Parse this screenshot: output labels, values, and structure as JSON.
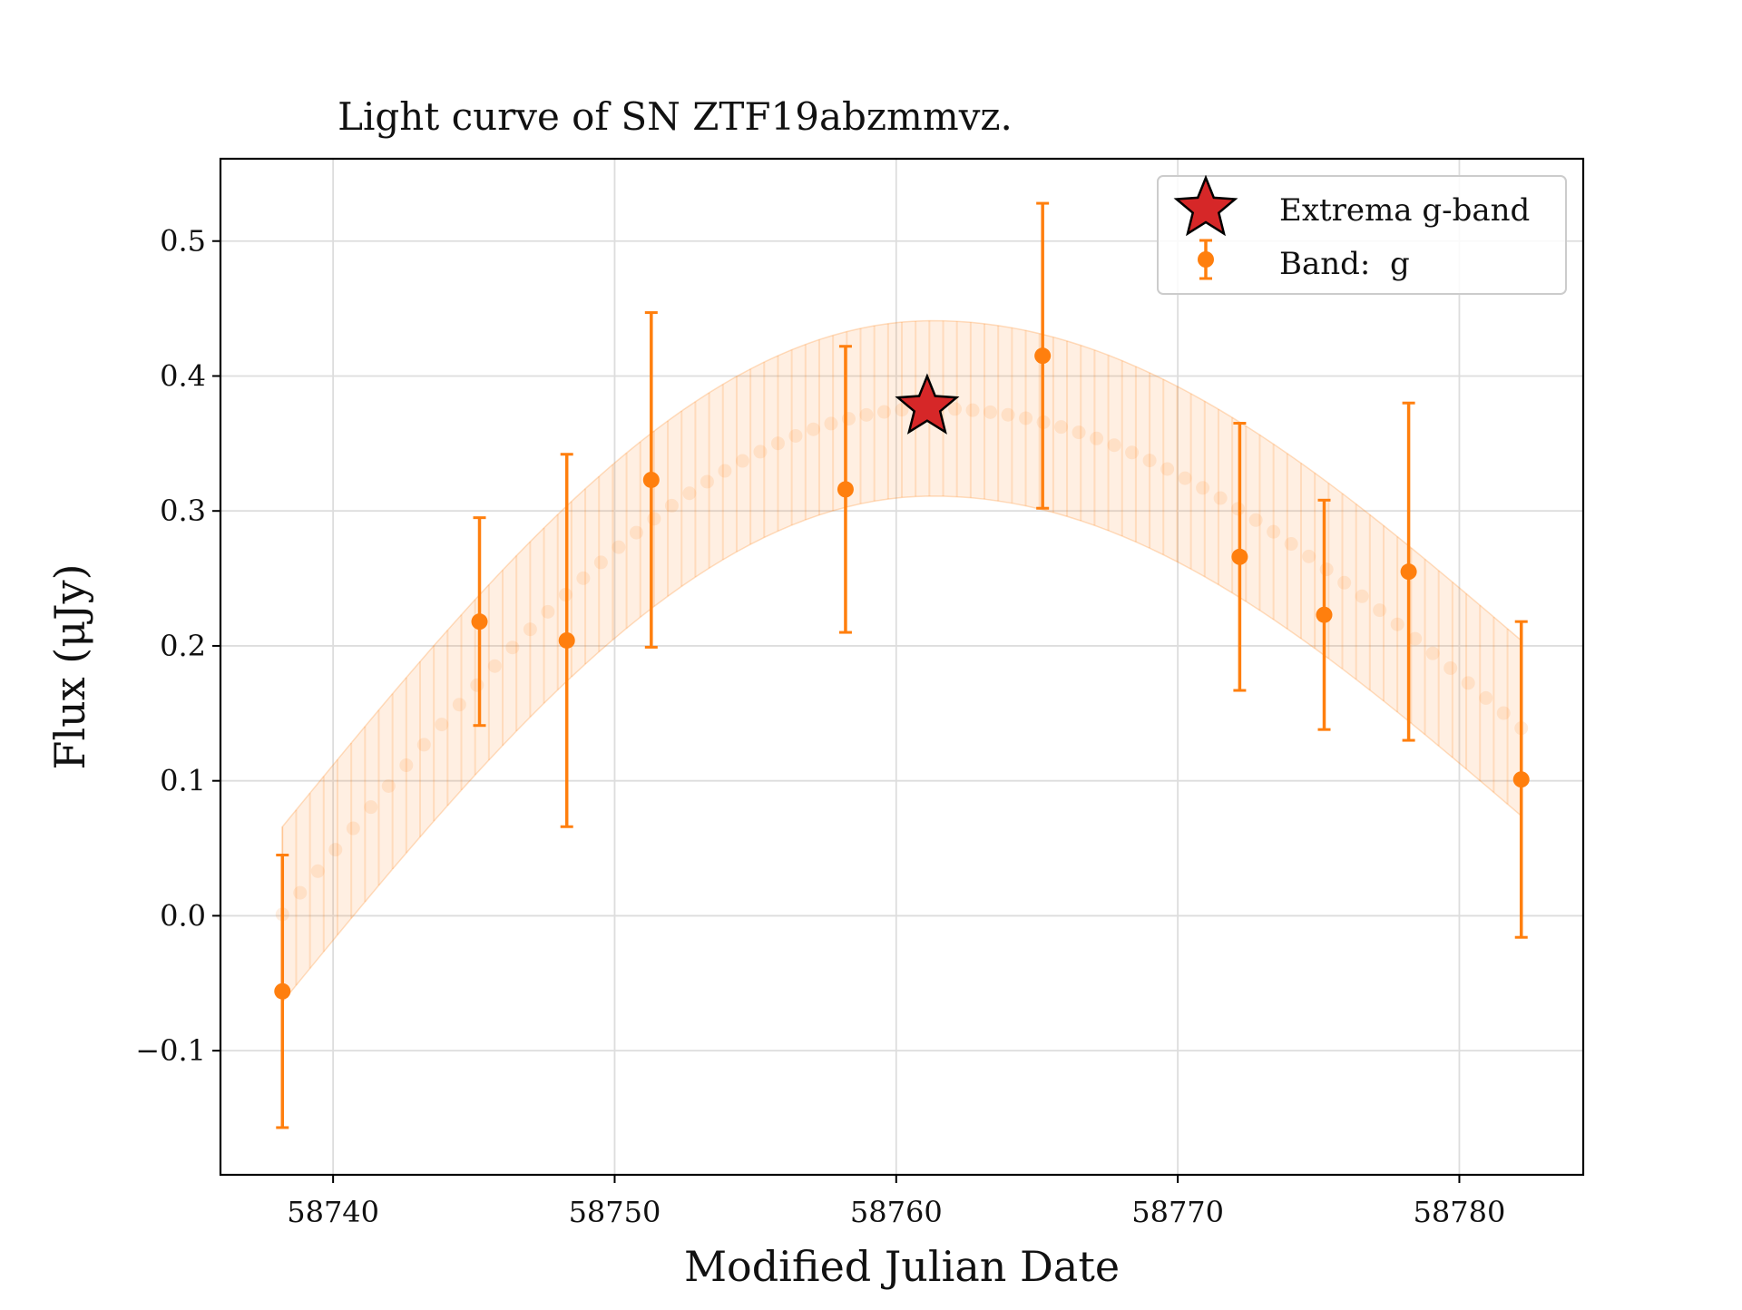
{
  "chart_data": {
    "type": "scatter",
    "title": "Light curve of SN ZTF19abzmmvz.",
    "xlabel": "Modified Julian Date",
    "ylabel": "Flux (μJy)",
    "xlim": [
      58736.0,
      58784.4
    ],
    "ylim": [
      -0.192,
      0.561
    ],
    "xticks": [
      58740,
      58750,
      58760,
      58770,
      58780
    ],
    "xtick_labels": [
      "58740",
      "58750",
      "58760",
      "58770",
      "58780"
    ],
    "yticks": [
      -0.1,
      0.0,
      0.1,
      0.2,
      0.3,
      0.4,
      0.5
    ],
    "ytick_labels": [
      "−0.1",
      "0.0",
      "0.1",
      "0.2",
      "0.3",
      "0.4",
      "0.5"
    ],
    "grid": true,
    "legend_position": "top-right",
    "colors": {
      "band_g": "#ff7f0e",
      "extrema": "#d62728"
    },
    "series": [
      {
        "name": "Band:  g",
        "kind": "errorbar",
        "x": [
          58738.2,
          58745.2,
          58748.3,
          58751.3,
          58758.2,
          58765.2,
          58772.2,
          58775.2,
          58778.2,
          58782.2
        ],
        "y": [
          -0.056,
          0.218,
          0.204,
          0.323,
          0.316,
          0.415,
          0.266,
          0.223,
          0.255,
          0.101
        ],
        "yerr": [
          0.101,
          0.077,
          0.138,
          0.124,
          0.106,
          0.113,
          0.099,
          0.085,
          0.125,
          0.117
        ]
      },
      {
        "name": "Extrema g-band",
        "kind": "marker-star",
        "x": [
          58761.1
        ],
        "y": [
          0.377
        ]
      },
      {
        "name": "model fit",
        "kind": "band",
        "x_range": [
          58738.2,
          58782.2
        ],
        "peak_x": 58761.3,
        "peak_y": 0.376,
        "start_y": 0.001,
        "end_y": 0.139,
        "band_halfwidth": 0.065
      }
    ]
  }
}
